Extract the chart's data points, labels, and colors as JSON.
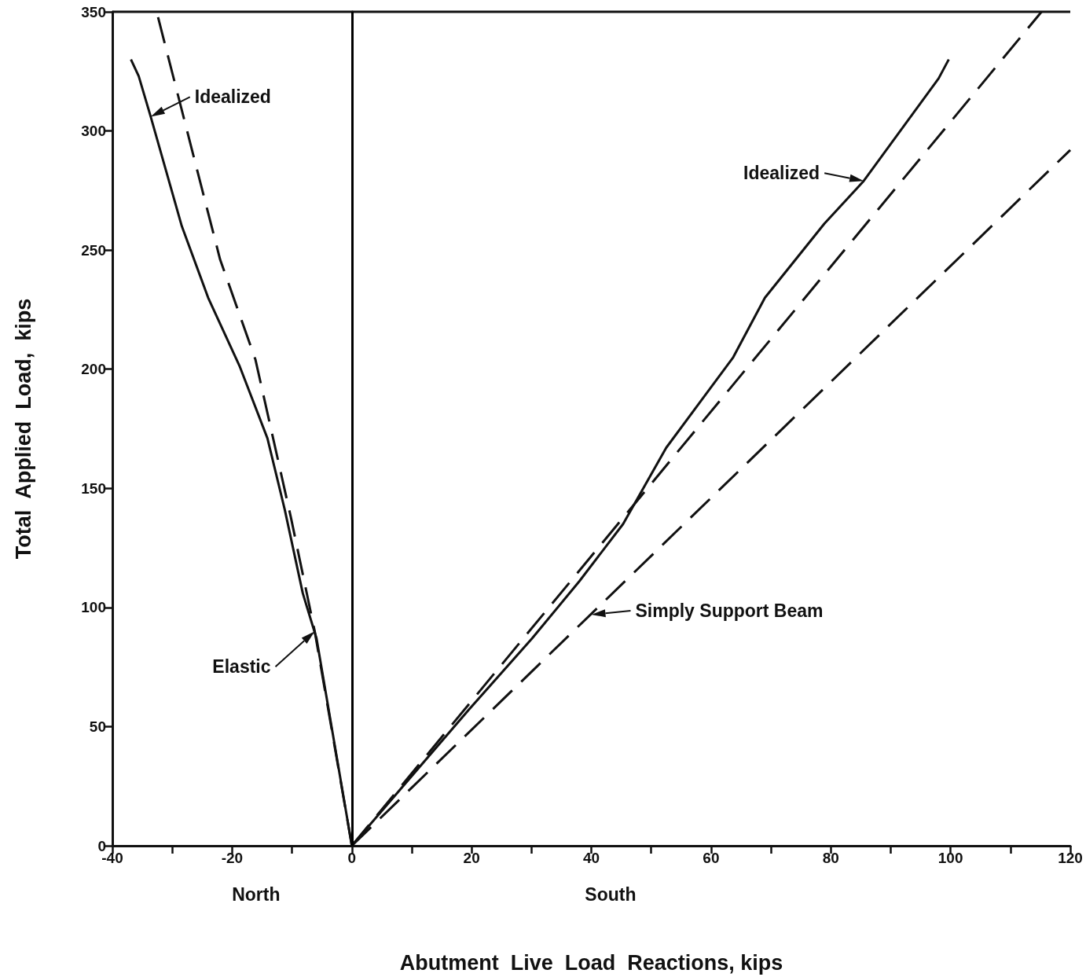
{
  "chart_data": {
    "type": "line",
    "xlabel": "Abutment  Live  Load  Reactions, kips",
    "ylabel": "Total  Applied  Load,  kips",
    "xlim": [
      -40,
      120
    ],
    "ylim": [
      0,
      350
    ],
    "xticks": [
      -40,
      {
        "value": -30,
        "label": null
      },
      -20,
      {
        "value": -10,
        "label": null
      },
      0,
      {
        "value": 10,
        "label": null
      },
      20,
      {
        "value": 30,
        "label": null
      },
      40,
      {
        "value": 50,
        "label": null
      },
      60,
      {
        "value": 70,
        "label": null
      },
      80,
      {
        "value": 90,
        "label": null
      },
      100,
      {
        "value": 110,
        "label": null
      },
      120
    ],
    "yticks": [
      0,
      50,
      100,
      150,
      200,
      250,
      300,
      350
    ],
    "grid": false,
    "marker": "none",
    "ref_lines": [
      {
        "axis": "x",
        "value": 0
      }
    ],
    "series": [
      {
        "color": "#111111",
        "line_style": "solid",
        "x": [
          -36.9,
          -35.6,
          -33.6,
          -28.4,
          -24.0,
          -18.7,
          -14.1,
          -11.2,
          -8.2,
          -5.9,
          0
        ],
        "values": [
          330,
          323,
          306,
          260,
          230,
          201,
          171,
          141,
          106,
          87,
          0
        ]
      },
      {
        "color": "#111111",
        "line_style": "dashed",
        "x": [
          0,
          -6.2,
          -10.2,
          -16.1,
          -22,
          -26.6,
          -32.6
        ],
        "values": [
          0,
          90,
          138,
          204,
          246,
          291,
          350
        ]
      },
      {
        "color": "#111111",
        "line_style": "solid",
        "x": [
          0,
          19.5,
          30.1,
          38,
          45.3,
          52.5,
          63.7,
          69,
          78.9,
          85.5,
          98,
          99.7
        ],
        "values": [
          0,
          57,
          87,
          111,
          135,
          167,
          205,
          230,
          261,
          279,
          322,
          330
        ]
      },
      {
        "color": "#111111",
        "line_style": "dashed",
        "x": [
          0,
          115.2
        ],
        "values": [
          0,
          350
        ]
      },
      {
        "color": "#111111",
        "line_style": "dashed",
        "x": [
          0,
          120
        ],
        "values": [
          0,
          292
        ]
      }
    ],
    "annotations": [
      {
        "text": "Idealized",
        "x": -33.6,
        "y": 306
      },
      {
        "text": "Idealized",
        "x": 85.5,
        "y": 279
      },
      {
        "text": "Elastic",
        "x": -6.2,
        "y": 90
      },
      {
        "text": "Simply Support Beam",
        "x": 40,
        "y": 97
      },
      "North",
      "South"
    ]
  }
}
